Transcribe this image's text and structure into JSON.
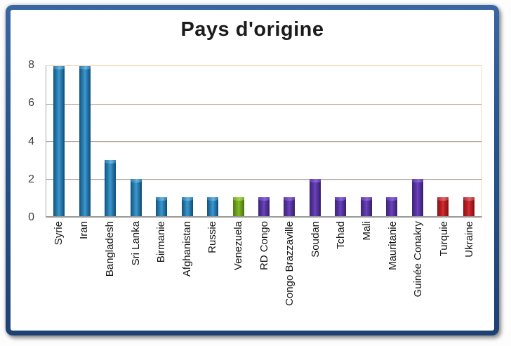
{
  "chart_data": {
    "type": "bar",
    "title": "Pays d'origine",
    "categories": [
      "Syrie",
      "Iran",
      "Bangladesh",
      "Sri Lanka",
      "Birmanie",
      "Afghanistan",
      "Russie",
      "Venezuela",
      "RD Congo",
      "Congo Brazzaville",
      "Soudan",
      "Tchad",
      "Mali",
      "Mauritanie",
      "Guinée Conakry",
      "Turquie",
      "Ukraine"
    ],
    "values": [
      8,
      8,
      3,
      2,
      1,
      1,
      1,
      1,
      1,
      1,
      2,
      1,
      1,
      1,
      2,
      1,
      1
    ],
    "color_keys": [
      "blue",
      "blue",
      "blue",
      "blue",
      "blue",
      "blue",
      "blue",
      "green",
      "purple",
      "purple",
      "purple",
      "purple",
      "purple",
      "purple",
      "purple",
      "red",
      "red"
    ],
    "palette": {
      "blue": "#1F74A8",
      "green": "#74A722",
      "purple": "#5C37A8",
      "red": "#BE2025"
    },
    "xlabel": "",
    "ylabel": "",
    "ylim": [
      0,
      8
    ],
    "yticks": [
      0,
      2,
      4,
      6,
      8
    ],
    "grid": true,
    "legend": "none",
    "category_label_rotation": 90
  },
  "style_colors": {
    "frame_border": "#27548E",
    "plot_border": "#FBD5B5",
    "gridline": "#A6A6A6",
    "axis_line": "#9A9A9A",
    "title_color": "#1B1B1B",
    "tick_label_color": "#3F3F3F"
  }
}
